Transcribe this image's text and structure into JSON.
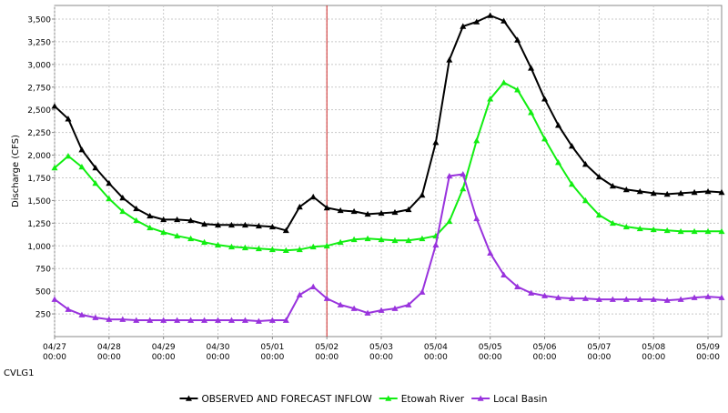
{
  "location_label": "CVLG1",
  "chart_data": {
    "type": "line",
    "title": "",
    "xlabel": "",
    "ylabel": "Discharge (CFS)",
    "ylim": [
      0,
      3650
    ],
    "y_ticks": [
      250,
      500,
      750,
      1000,
      1250,
      1500,
      1750,
      2000,
      2250,
      2500,
      2750,
      3000,
      3250,
      3500
    ],
    "y_tick_labels": [
      "250",
      "500",
      "750",
      "1,000",
      "1,250",
      "1,500",
      "1,750",
      "2,000",
      "2,250",
      "2,500",
      "2,750",
      "3,000",
      "3,250",
      "3,500"
    ],
    "x_range_days": [
      0,
      12.25
    ],
    "x_ticks": [
      {
        "date": "04/27",
        "time": "00:00"
      },
      {
        "date": "04/28",
        "time": "00:00"
      },
      {
        "date": "04/29",
        "time": "00:00"
      },
      {
        "date": "04/30",
        "time": "00:00"
      },
      {
        "date": "05/01",
        "time": "00:00"
      },
      {
        "date": "05/02",
        "time": "00:00"
      },
      {
        "date": "05/03",
        "time": "00:00"
      },
      {
        "date": "05/04",
        "time": "00:00"
      },
      {
        "date": "05/05",
        "time": "00:00"
      },
      {
        "date": "05/06",
        "time": "00:00"
      },
      {
        "date": "05/07",
        "time": "00:00"
      },
      {
        "date": "05/08",
        "time": "00:00"
      },
      {
        "date": "05/09",
        "time": "00:00"
      }
    ],
    "forecast_marker_date": "05/02 00:00",
    "grid": true,
    "legend_position": "bottom",
    "series": [
      {
        "name": "OBSERVED AND FORECAST INFLOW",
        "color": "#000000",
        "x": [
          0,
          0.25,
          0.5,
          0.75,
          1,
          1.25,
          1.5,
          1.75,
          2,
          2.25,
          2.5,
          2.75,
          3,
          3.25,
          3.5,
          3.75,
          4,
          4.25,
          4.5,
          4.75,
          5,
          5.25,
          5.5,
          5.75,
          6,
          6.25,
          6.5,
          6.75,
          7,
          7.25,
          7.5,
          7.75,
          8,
          8.25,
          8.5,
          8.75,
          9,
          9.25,
          9.5,
          9.75,
          10,
          10.25,
          10.5,
          10.75,
          11,
          11.25,
          11.5,
          11.75,
          12,
          12.25
        ],
        "values": [
          2540,
          2400,
          2060,
          1860,
          1690,
          1530,
          1410,
          1330,
          1290,
          1290,
          1280,
          1240,
          1230,
          1230,
          1230,
          1220,
          1210,
          1170,
          1430,
          1540,
          1420,
          1390,
          1380,
          1350,
          1360,
          1370,
          1400,
          1560,
          2140,
          3050,
          3420,
          3470,
          3540,
          3480,
          3270,
          2960,
          2620,
          2330,
          2100,
          1900,
          1760,
          1660,
          1620,
          1600,
          1580,
          1570,
          1580,
          1590,
          1600,
          1590
        ]
      },
      {
        "name": "Etowah River",
        "color": "#11ee11",
        "x": [
          0,
          0.25,
          0.5,
          0.75,
          1,
          1.25,
          1.5,
          1.75,
          2,
          2.25,
          2.5,
          2.75,
          3,
          3.25,
          3.5,
          3.75,
          4,
          4.25,
          4.5,
          4.75,
          5,
          5.25,
          5.5,
          5.75,
          6,
          6.25,
          6.5,
          6.75,
          7,
          7.25,
          7.5,
          7.75,
          8,
          8.25,
          8.5,
          8.75,
          9,
          9.25,
          9.5,
          9.75,
          10,
          10.25,
          10.5,
          10.75,
          11,
          11.25,
          11.5,
          11.75,
          12,
          12.25
        ],
        "values": [
          1860,
          1990,
          1870,
          1690,
          1520,
          1380,
          1280,
          1200,
          1150,
          1110,
          1080,
          1040,
          1010,
          990,
          980,
          970,
          960,
          950,
          960,
          990,
          1000,
          1040,
          1070,
          1080,
          1070,
          1060,
          1060,
          1080,
          1110,
          1270,
          1630,
          2160,
          2620,
          2800,
          2720,
          2470,
          2180,
          1920,
          1680,
          1500,
          1340,
          1250,
          1210,
          1190,
          1180,
          1170,
          1160,
          1160,
          1160,
          1160
        ]
      },
      {
        "name": "Local Basin",
        "color": "#9933dd",
        "x": [
          0,
          0.25,
          0.5,
          0.75,
          1,
          1.25,
          1.5,
          1.75,
          2,
          2.25,
          2.5,
          2.75,
          3,
          3.25,
          3.5,
          3.75,
          4,
          4.25,
          4.5,
          4.75,
          5,
          5.25,
          5.5,
          5.75,
          6,
          6.25,
          6.5,
          6.75,
          7,
          7.25,
          7.5,
          7.75,
          8,
          8.25,
          8.5,
          8.75,
          9,
          9.25,
          9.5,
          9.75,
          10,
          10.25,
          10.5,
          10.75,
          11,
          11.25,
          11.5,
          11.75,
          12,
          12.25
        ],
        "values": [
          410,
          300,
          240,
          210,
          190,
          190,
          180,
          180,
          180,
          180,
          180,
          180,
          180,
          180,
          180,
          170,
          180,
          180,
          460,
          550,
          420,
          350,
          310,
          260,
          290,
          310,
          350,
          490,
          1010,
          1770,
          1790,
          1300,
          920,
          680,
          550,
          480,
          450,
          430,
          420,
          420,
          410,
          410,
          410,
          410,
          410,
          400,
          410,
          430,
          440,
          430
        ]
      }
    ]
  }
}
